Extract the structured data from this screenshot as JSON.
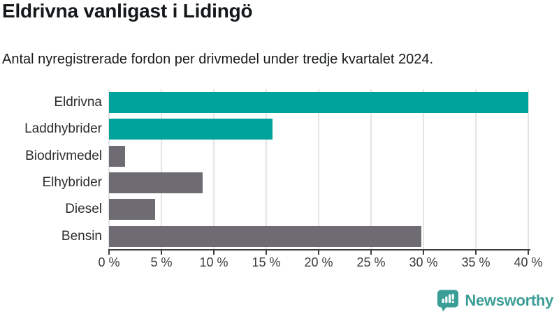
{
  "header": {
    "title": "Eldrivna vanligast i Lidingö",
    "subtitle": "Antal nyregistrerade fordon per drivmedel under tredje kvartalet 2024."
  },
  "chart_data": {
    "type": "bar",
    "orientation": "horizontal",
    "title": "Eldrivna vanligast i Lidingö",
    "subtitle": "Antal nyregistrerade fordon per drivmedel under tredje kvartalet 2024.",
    "categories": [
      "Eldrivna",
      "Laddhybrider",
      "Biodrivmedel",
      "Elhybrider",
      "Diesel",
      "Bensin"
    ],
    "values": [
      40.0,
      15.6,
      1.5,
      8.9,
      4.4,
      29.8
    ],
    "unit": "%",
    "xlim": [
      0,
      40
    ],
    "x_ticks": [
      0,
      5,
      10,
      15,
      20,
      25,
      30,
      35,
      40
    ],
    "x_tick_suffix": " %",
    "grid": "vertical",
    "legend": "none",
    "bar_colors": [
      "#00a39b",
      "#00a39b",
      "#6e6b72",
      "#6e6b72",
      "#6e6b72",
      "#6e6b72"
    ],
    "accent_color": "#00a39b",
    "muted_color": "#6e6b72",
    "grid_color": "#e4e4e4",
    "axis_color": "#3e3e3e"
  },
  "footer": {
    "brand": "Newsworthy",
    "brand_color": "#3a9e96",
    "logo_icon": "newsworthy-bubble-barchart-exclamation"
  }
}
